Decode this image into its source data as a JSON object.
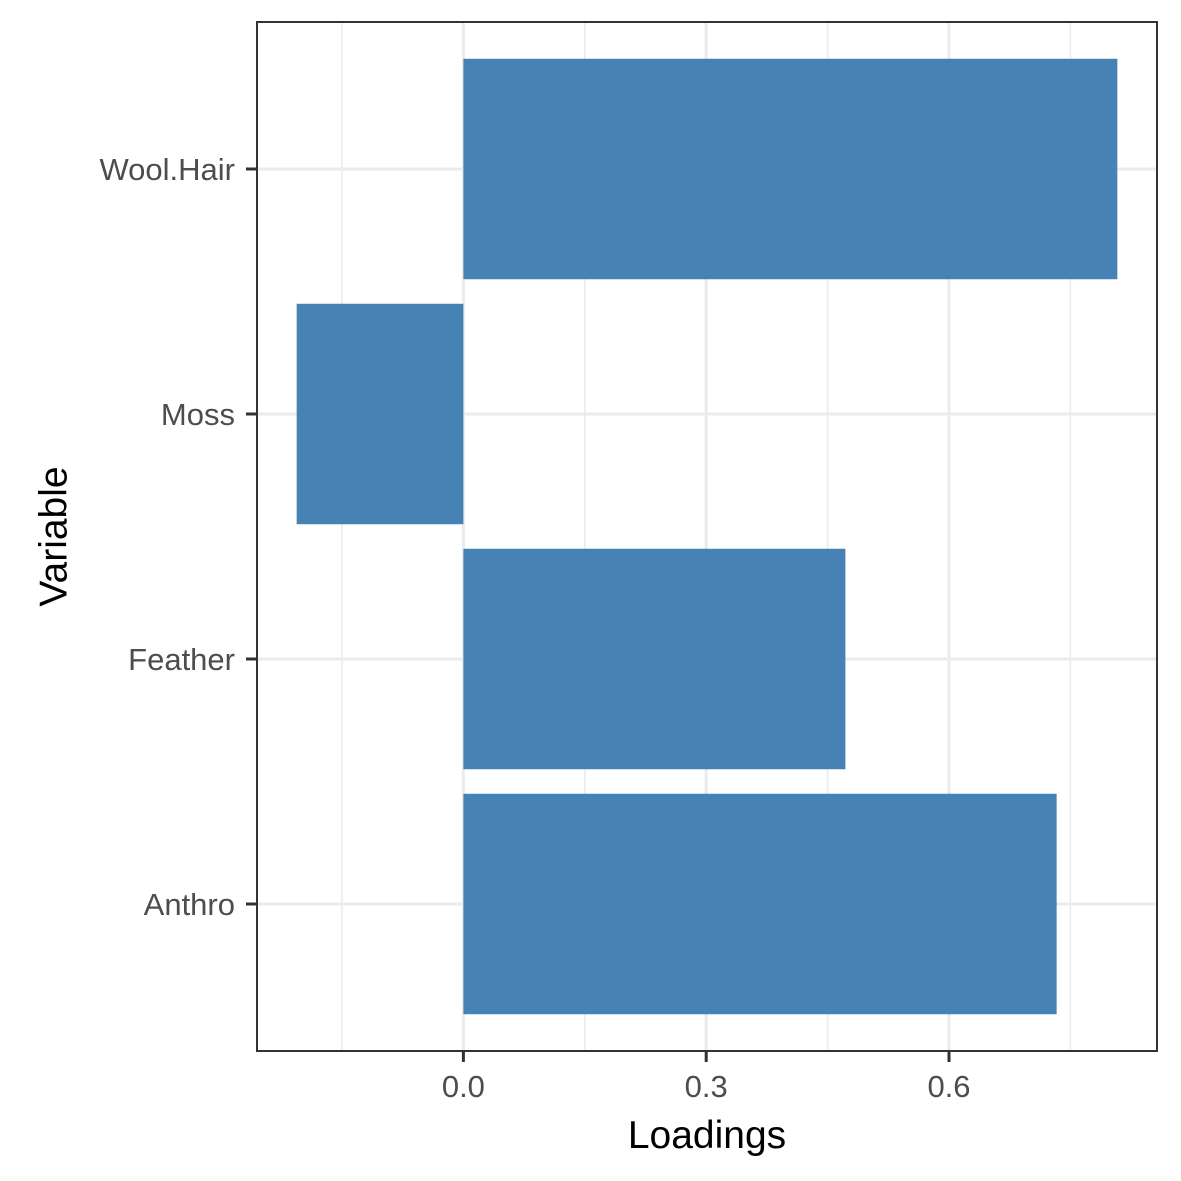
{
  "chart_data": {
    "type": "bar",
    "orientation": "horizontal",
    "categories": [
      "Wool.Hair",
      "Moss",
      "Feather",
      "Anthro"
    ],
    "values": [
      0.808,
      -0.206,
      0.472,
      0.733
    ],
    "xlabel": "Loadings",
    "ylabel": "Variable",
    "xlim": [
      -0.255,
      0.857
    ],
    "xticks": [
      0.0,
      0.3,
      0.6
    ],
    "xtick_labels": [
      "0.0",
      "0.3",
      "0.6"
    ],
    "grid": true,
    "bar_color": "#4682b4",
    "panel_border_color": "#333333",
    "grid_color": "#ebebeb"
  }
}
